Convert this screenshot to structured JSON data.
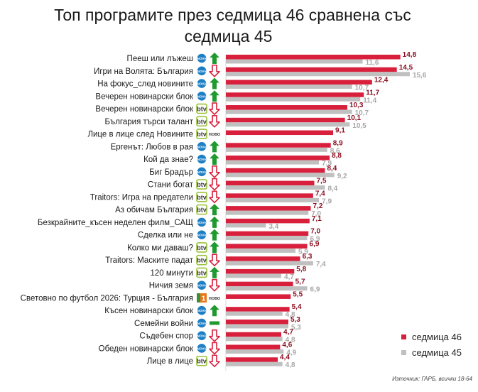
{
  "chart_data": {
    "type": "bar",
    "orientation": "horizontal",
    "title": "Топ програмите през седмица 46 сравнена със седмица 45",
    "title_lines": [
      "Топ програмите през седмица 46 сравнена със",
      "седмица 45"
    ],
    "xlim": [
      0,
      16
    ],
    "series": [
      {
        "name": "седмица 46",
        "color": "#d81f3c"
      },
      {
        "name": "седмица 45",
        "color": "#c0c0c0"
      }
    ],
    "rows": [
      {
        "program": "Пееш или лъжеш",
        "channel": "nova",
        "channel_label": "NOVA",
        "trend": "up",
        "w46": 14.8,
        "w45": 11.6,
        "w46_label": "14,8",
        "w45_label": "11,6"
      },
      {
        "program": "Игри на Волята: България",
        "channel": "nova",
        "channel_label": "NOVA",
        "trend": "down",
        "w46": 14.5,
        "w45": 15.6,
        "w46_label": "14,5",
        "w45_label": "15,6"
      },
      {
        "program": "На фокус_след новините",
        "channel": "nova",
        "channel_label": "NOVA",
        "trend": "up",
        "w46": 12.4,
        "w45": 10.7,
        "w46_label": "12,4",
        "w45_label": "10,7"
      },
      {
        "program": "Вечерен новинарски блок",
        "channel": "nova",
        "channel_label": "NOVA",
        "trend": "up",
        "w46": 11.7,
        "w45": 11.4,
        "w46_label": "11,7",
        "w45_label": "11,4"
      },
      {
        "program": "Вечерен новинарски блок",
        "channel": "btv",
        "channel_label": "btv",
        "trend": "down",
        "w46": 10.3,
        "w45": 10.7,
        "w46_label": "10,3",
        "w45_label": "10,7"
      },
      {
        "program": "България търси талант",
        "channel": "btv",
        "channel_label": "btv",
        "trend": "down",
        "w46": 10.1,
        "w45": 10.5,
        "w46_label": "10,1",
        "w45_label": "10,5"
      },
      {
        "program": "Лице в лице след Новините",
        "channel": "btv-novo",
        "channel_label": "btv",
        "badge": "НОВО",
        "trend": "none",
        "w46": 9.1,
        "w45": null,
        "w46_label": "9,1",
        "w45_label": ""
      },
      {
        "program": "Ергенът: Любов в рая",
        "channel": "nova",
        "channel_label": "NOVA",
        "trend": "up",
        "w46": 8.9,
        "w45": 8.6,
        "w46_label": "8,9",
        "w45_label": "8,6"
      },
      {
        "program": "Кой да знае?",
        "channel": "nova",
        "channel_label": "NOVA",
        "trend": "up",
        "w46": 8.8,
        "w45": 7.9,
        "w46_label": "8,8",
        "w45_label": "7,9"
      },
      {
        "program": "Биг Брадър",
        "channel": "nova",
        "channel_label": "NOVA",
        "trend": "down",
        "w46": 8.4,
        "w45": 9.2,
        "w46_label": "8,4",
        "w45_label": "9,2"
      },
      {
        "program": "Стани богат",
        "channel": "btv",
        "channel_label": "btv",
        "trend": "down",
        "w46": 7.5,
        "w45": 8.4,
        "w46_label": "7,5",
        "w45_label": "8,4"
      },
      {
        "program": "Traitors: Игра на предатели",
        "channel": "btv",
        "channel_label": "btv",
        "trend": "down",
        "w46": 7.4,
        "w45": 7.9,
        "w46_label": "7,4",
        "w45_label": "7,9"
      },
      {
        "program": "Аз обичам България",
        "channel": "btv",
        "channel_label": "btv",
        "trend": "up",
        "w46": 7.2,
        "w45": 7.0,
        "w46_label": "7,2",
        "w45_label": "7,0"
      },
      {
        "program": "Безкрайните_късен неделен филм_САЩ",
        "channel": "nova",
        "channel_label": "NOVA",
        "trend": "up",
        "w46": 7.1,
        "w45": 3.4,
        "w46_label": "7,1",
        "w45_label": "3,4"
      },
      {
        "program": "Сделка или не",
        "channel": "nova",
        "channel_label": "NOVA",
        "trend": "up",
        "w46": 7.0,
        "w45": 6.9,
        "w46_label": "7,0",
        "w45_label": "6,9"
      },
      {
        "program": "Колко ми даваш?",
        "channel": "btv",
        "channel_label": "btv",
        "trend": "up",
        "w46": 6.9,
        "w45": 5.9,
        "w46_label": "6,9",
        "w45_label": "5,9"
      },
      {
        "program": "Traitors: Маските падат",
        "channel": "btv",
        "channel_label": "btv",
        "trend": "down",
        "w46": 6.3,
        "w45": 7.4,
        "w46_label": "6,3",
        "w45_label": "7,4"
      },
      {
        "program": "120 минути",
        "channel": "btv",
        "channel_label": "btv",
        "trend": "up",
        "w46": 5.8,
        "w45": 4.7,
        "w46_label": "5,8",
        "w45_label": "4,7"
      },
      {
        "program": "Ничия земя",
        "channel": "nova",
        "channel_label": "NOVA",
        "trend": "down",
        "w46": 5.7,
        "w45": 6.9,
        "w46_label": "5,7",
        "w45_label": "6,9"
      },
      {
        "program": "Световно по футбол 2026: Турция - България",
        "channel": "bnt1-novo",
        "channel_label": "1",
        "badge": "НОВО",
        "trend": "none",
        "w46": 5.5,
        "w45": null,
        "w46_label": "5,5",
        "w45_label": ""
      },
      {
        "program": "Късен новинарски блок",
        "channel": "nova",
        "channel_label": "NOVA",
        "trend": "up",
        "w46": 5.4,
        "w45": 4.8,
        "w46_label": "5,4",
        "w45_label": "4,8"
      },
      {
        "program": "Семейни войни",
        "channel": "nova",
        "channel_label": "NOVA",
        "trend": "same",
        "w46": 5.3,
        "w45": 5.3,
        "w46_label": "5,3",
        "w45_label": "5,3"
      },
      {
        "program": "Съдебен спор",
        "channel": "nova",
        "channel_label": "NOVA",
        "trend": "down",
        "w46": 4.7,
        "w45": 4.8,
        "w46_label": "4,7",
        "w45_label": "4,8"
      },
      {
        "program": "Обеден новинарски блок",
        "channel": "nova",
        "channel_label": "NOVA",
        "trend": "down",
        "w46": 4.6,
        "w45": 4.9,
        "w46_label": "4,6",
        "w45_label": "4,9"
      },
      {
        "program": "Лице в лице",
        "channel": "btv",
        "channel_label": "btv",
        "trend": "down",
        "w46": 4.4,
        "w45": 4.8,
        "w46_label": "4,4",
        "w45_label": "4,8"
      }
    ]
  },
  "legend": {
    "w46": "седмица 46",
    "w45": "седмица 45"
  },
  "source": "Източник: ГАРБ, всички 18-64",
  "colors": {
    "accent": "#d81f3c",
    "secondary": "#c0c0c0",
    "up": "#1f9a2e",
    "down": "#d81f3c",
    "same": "#1f9a2e",
    "nova": "#1f7fc4",
    "btv": "#3a3a3a"
  }
}
